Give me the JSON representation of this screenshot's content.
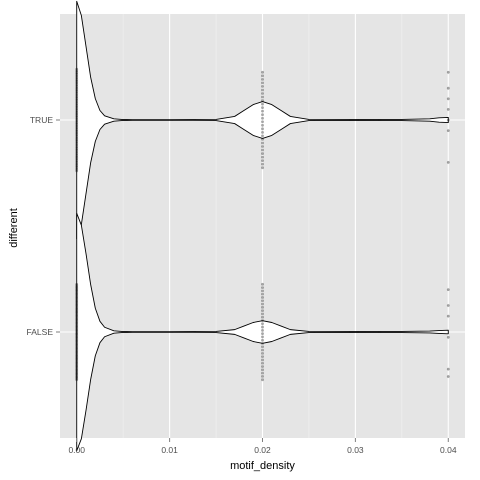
{
  "chart_data": {
    "type": "violin",
    "orientation": "horizontal",
    "xlabel": "motif_density",
    "ylabel": "different",
    "xlim": [
      -0.0018,
      0.0418
    ],
    "x_ticks": [
      0.0,
      0.01,
      0.02,
      0.03,
      0.04
    ],
    "x_tick_labels": [
      "0.00",
      "0.01",
      "0.02",
      "0.03",
      "0.04"
    ],
    "categories": [
      "TRUE",
      "FALSE"
    ],
    "grid": true,
    "background": "#e5e5e5",
    "grid_color": "#ffffff",
    "violin_fill": "#ffffff",
    "violin_stroke": "#000000",
    "violin_half_width_scale": 0.28,
    "groups": [
      {
        "name": "TRUE",
        "density": [
          [
            0.0,
            1.0
          ],
          [
            0.0005,
            0.88
          ],
          [
            0.001,
            0.62
          ],
          [
            0.0015,
            0.36
          ],
          [
            0.002,
            0.18
          ],
          [
            0.0025,
            0.08
          ],
          [
            0.003,
            0.035
          ],
          [
            0.004,
            0.01
          ],
          [
            0.005,
            0.004
          ],
          [
            0.006,
            0.003
          ],
          [
            0.01,
            0.003
          ],
          [
            0.015,
            0.005
          ],
          [
            0.017,
            0.03
          ],
          [
            0.018,
            0.08
          ],
          [
            0.019,
            0.13
          ],
          [
            0.02,
            0.155
          ],
          [
            0.021,
            0.13
          ],
          [
            0.022,
            0.08
          ],
          [
            0.023,
            0.03
          ],
          [
            0.025,
            0.005
          ],
          [
            0.03,
            0.004
          ],
          [
            0.035,
            0.005
          ],
          [
            0.038,
            0.01
          ],
          [
            0.039,
            0.018
          ],
          [
            0.04,
            0.022
          ]
        ],
        "points": [
          {
            "x": 0.0,
            "spread": [
              -0.48,
              0.48
            ],
            "count": 60
          },
          {
            "x": 0.02,
            "spread": [
              -0.45,
              0.45
            ],
            "count": 28
          },
          {
            "x": 0.04,
            "offsets": [
              -0.45,
              -0.3,
              -0.2,
              -0.1,
              0.0,
              0.1,
              0.4
            ]
          }
        ]
      },
      {
        "name": "FALSE",
        "density": [
          [
            0.0,
            1.0
          ],
          [
            0.0005,
            0.9
          ],
          [
            0.001,
            0.66
          ],
          [
            0.0015,
            0.4
          ],
          [
            0.002,
            0.2
          ],
          [
            0.0025,
            0.09
          ],
          [
            0.003,
            0.04
          ],
          [
            0.004,
            0.01
          ],
          [
            0.005,
            0.004
          ],
          [
            0.006,
            0.003
          ],
          [
            0.01,
            0.003
          ],
          [
            0.015,
            0.005
          ],
          [
            0.017,
            0.02
          ],
          [
            0.018,
            0.05
          ],
          [
            0.019,
            0.08
          ],
          [
            0.02,
            0.095
          ],
          [
            0.021,
            0.08
          ],
          [
            0.022,
            0.05
          ],
          [
            0.023,
            0.02
          ],
          [
            0.025,
            0.005
          ],
          [
            0.03,
            0.004
          ],
          [
            0.035,
            0.005
          ],
          [
            0.038,
            0.008
          ],
          [
            0.039,
            0.012
          ],
          [
            0.04,
            0.015
          ]
        ],
        "points": [
          {
            "x": 0.0,
            "spread": [
              -0.45,
              0.45
            ],
            "count": 70
          },
          {
            "x": 0.02,
            "spread": [
              -0.45,
              0.45
            ],
            "count": 30
          },
          {
            "x": 0.04,
            "offsets": [
              -0.4,
              -0.25,
              -0.15,
              0.05,
              0.35,
              0.42
            ]
          }
        ]
      }
    ]
  }
}
